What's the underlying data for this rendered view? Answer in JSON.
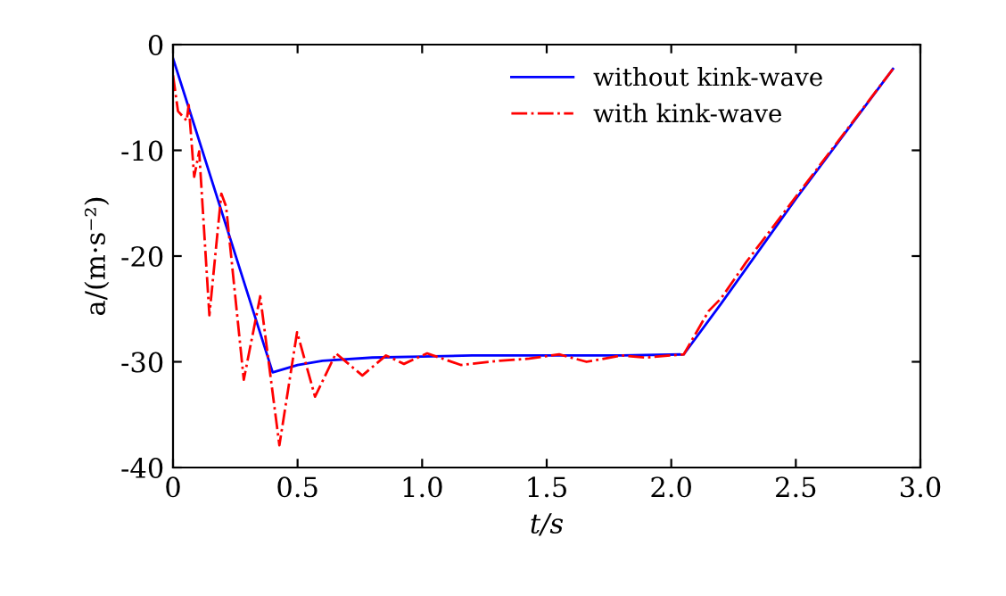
{
  "chart_data": {
    "type": "line",
    "xlabel": "t/s",
    "ylabel": "a/(m·s⁻²)",
    "xlim": [
      0,
      3.0
    ],
    "ylim": [
      -40,
      0
    ],
    "xticks": [
      0,
      {
        "value": 0.5,
        "label": "0.5"
      },
      {
        "value": 1.0,
        "label": "1.0"
      },
      {
        "value": 1.5,
        "label": "1.5"
      },
      {
        "value": 2.0,
        "label": "2.0"
      },
      {
        "value": 2.5,
        "label": "2.5"
      },
      {
        "value": 3.0,
        "label": "3.0"
      }
    ],
    "yticks": [
      -40,
      -30,
      -20,
      -10,
      0
    ],
    "grid": false,
    "legend": "top right",
    "series": [
      {
        "name": "without kink-wave",
        "color": "#0000ff",
        "line_style": "solid",
        "x": [
          0,
          0.05,
          0.4,
          0.5,
          0.6,
          0.8,
          1.0,
          1.2,
          1.5,
          1.8,
          2.05,
          2.2,
          2.5,
          2.89
        ],
        "values": [
          -1.3,
          -5,
          -31.0,
          -30.3,
          -29.9,
          -29.6,
          -29.5,
          -29.4,
          -29.4,
          -29.4,
          -29.3,
          -24.5,
          -14.6,
          -2.3
        ]
      },
      {
        "name": "with kink-wave",
        "color": "#ff0000",
        "line_style": "dashdot",
        "x": [
          0,
          0.02,
          0.055,
          0.063,
          0.085,
          0.105,
          0.146,
          0.194,
          0.213,
          0.284,
          0.35,
          0.427,
          0.498,
          0.57,
          0.654,
          0.76,
          0.855,
          0.927,
          1.02,
          1.155,
          1.31,
          1.43,
          1.55,
          1.66,
          1.8,
          1.9,
          2.05,
          2.15,
          2.2,
          2.3,
          2.5,
          2.89
        ],
        "values": [
          -2.9,
          -6.3,
          -7.2,
          -5.7,
          -12.5,
          -10.1,
          -25.6,
          -14.1,
          -15.3,
          -31.7,
          -23.8,
          -37.9,
          -27.2,
          -33.3,
          -29.2,
          -31.3,
          -29.4,
          -30.2,
          -29.2,
          -30.3,
          -29.9,
          -29.7,
          -29.3,
          -30.0,
          -29.4,
          -29.6,
          -29.3,
          -25.2,
          -24.0,
          -20.6,
          -14.4,
          -2.3
        ]
      }
    ]
  }
}
